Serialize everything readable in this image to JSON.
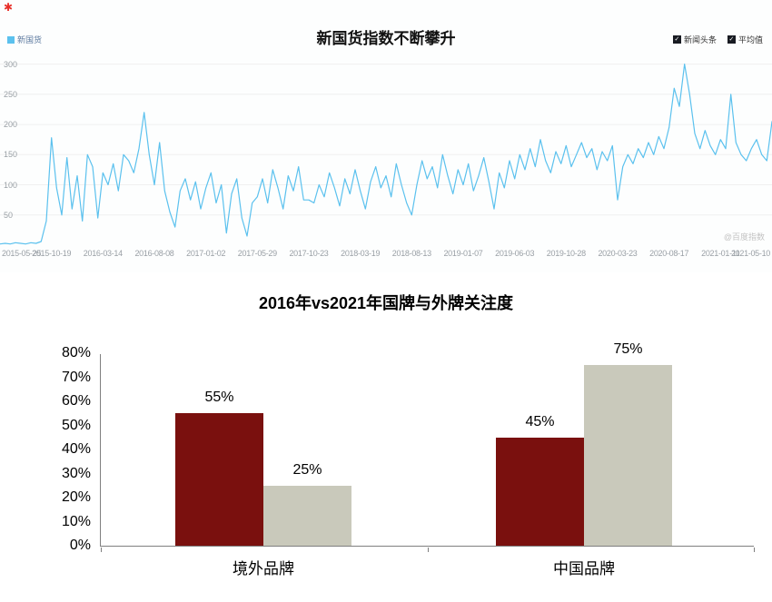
{
  "icons": {
    "corner_mark": "✱",
    "legend_checkbox": "✓"
  },
  "chart_data": [
    {
      "type": "line",
      "title": "新国货指数不断攀升",
      "series_name": "新国货",
      "line_color": "#5bc1ee",
      "legend_right": [
        "新闻头条",
        "平均值"
      ],
      "watermark": "@百度指数",
      "ylim": [
        0,
        310
      ],
      "y_ticks": [
        50,
        100,
        150,
        200,
        250,
        300
      ],
      "x_tick_labels": [
        "2015-05-25",
        "2015-10-19",
        "2016-03-14",
        "2016-08-08",
        "2017-01-02",
        "2017-05-29",
        "2017-10-23",
        "2018-03-19",
        "2018-08-13",
        "2019-01-07",
        "2019-06-03",
        "2019-10-28",
        "2020-03-23",
        "2020-08-17",
        "2021-01-11",
        "2021-05-10"
      ],
      "values": [
        2,
        3,
        2,
        4,
        3,
        2,
        4,
        3,
        6,
        40,
        178,
        95,
        50,
        145,
        60,
        115,
        40,
        150,
        130,
        45,
        120,
        100,
        135,
        90,
        150,
        140,
        120,
        160,
        220,
        150,
        100,
        170,
        90,
        55,
        30,
        90,
        110,
        75,
        105,
        60,
        95,
        120,
        70,
        100,
        20,
        85,
        110,
        45,
        15,
        70,
        80,
        110,
        70,
        125,
        95,
        60,
        115,
        90,
        130,
        75,
        75,
        70,
        100,
        80,
        120,
        95,
        65,
        110,
        85,
        125,
        90,
        60,
        105,
        130,
        95,
        115,
        80,
        135,
        100,
        70,
        50,
        100,
        140,
        110,
        130,
        95,
        150,
        115,
        85,
        125,
        100,
        135,
        90,
        115,
        145,
        105,
        60,
        120,
        95,
        140,
        110,
        150,
        125,
        160,
        130,
        175,
        140,
        120,
        155,
        135,
        165,
        130,
        150,
        170,
        145,
        160,
        125,
        155,
        140,
        165,
        75,
        130,
        150,
        135,
        160,
        145,
        170,
        150,
        180,
        160,
        195,
        260,
        230,
        300,
        250,
        185,
        160,
        190,
        165,
        150,
        175,
        160,
        250,
        170,
        150,
        140,
        160,
        175,
        150,
        140,
        205
      ]
    },
    {
      "type": "bar",
      "title": "2016年vs2021年国牌与外牌关注度",
      "categories": [
        "境外品牌",
        "中国品牌"
      ],
      "series": [
        {
          "name": "2016年",
          "color": "#7a100e",
          "values": [
            55,
            45
          ]
        },
        {
          "name": "2021年",
          "color": "#c9c9bb",
          "values": [
            25,
            75
          ]
        }
      ],
      "data_label_suffix": "%",
      "ylim": [
        0,
        80
      ],
      "y_tick_step": 10,
      "y_tick_suffix": "%"
    }
  ]
}
